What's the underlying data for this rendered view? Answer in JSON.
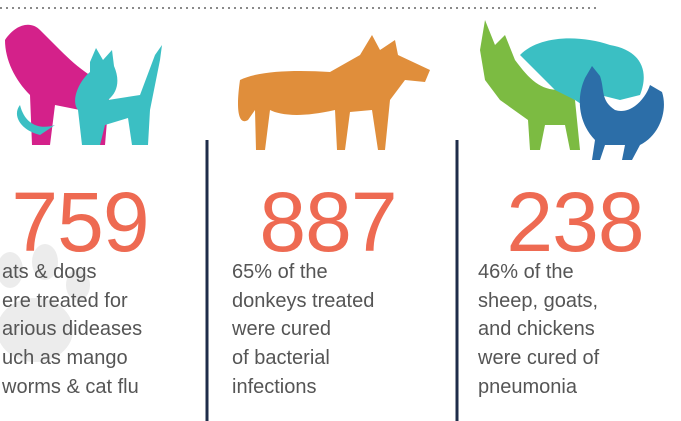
{
  "columns": [
    {
      "number": "759",
      "lines": [
        "ats & dogs",
        "ere treated for",
        "arious dideases",
        "uch as mango",
        "worms & cat flu"
      ]
    },
    {
      "number": "887",
      "lines": [
        "65% of the",
        "donkeys treated",
        "were cured",
        "of bacterial",
        "infections"
      ]
    },
    {
      "number": "238",
      "lines": [
        "46% of the",
        "sheep, goats,",
        "and chickens",
        "were cured of",
        "pneumonia"
      ]
    }
  ]
}
